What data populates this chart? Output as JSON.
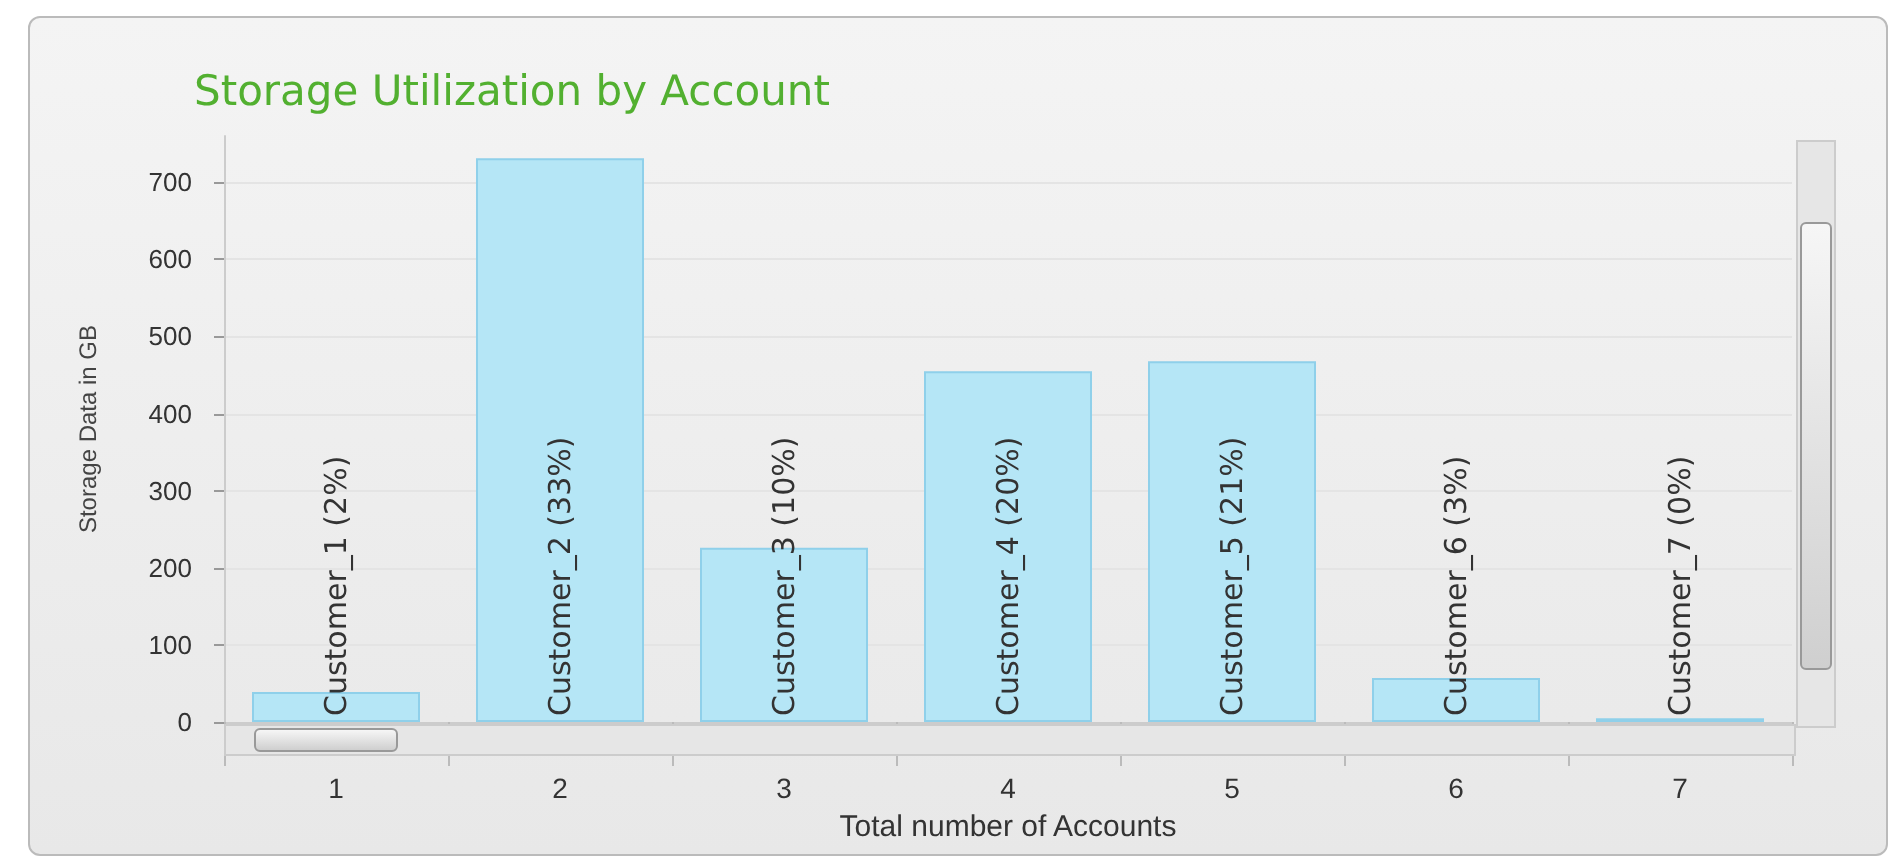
{
  "chart_data": {
    "type": "bar",
    "title": "Storage Utilization by Account",
    "xlabel": "Total number of Accounts",
    "ylabel": "Storage Data in GB",
    "categories": [
      "1",
      "2",
      "3",
      "4",
      "5",
      "6",
      "7"
    ],
    "values": [
      39,
      731,
      226,
      455,
      468,
      57,
      5
    ],
    "annotations": [
      {
        "text": "Customer_1 (2%)",
        "x": "1",
        "y": 0
      },
      {
        "text": "Customer_2 (33%)",
        "x": "2",
        "y": 0
      },
      {
        "text": "Customer_3 (10%)",
        "x": "3",
        "y": 0
      },
      {
        "text": "Customer_4 (20%)",
        "x": "4",
        "y": 0
      },
      {
        "text": "Customer_5 (21%)",
        "x": "5",
        "y": 0
      },
      {
        "text": "Customer_6 (3%)",
        "x": "6",
        "y": 0
      },
      {
        "text": "Customer_7 (0%)",
        "x": "7",
        "y": 0
      }
    ],
    "color": "#b5e6f6",
    "ylim": [
      0,
      760
    ],
    "yticks": [
      0,
      100,
      200,
      300,
      400,
      500,
      600,
      700
    ],
    "grid": "y"
  }
}
